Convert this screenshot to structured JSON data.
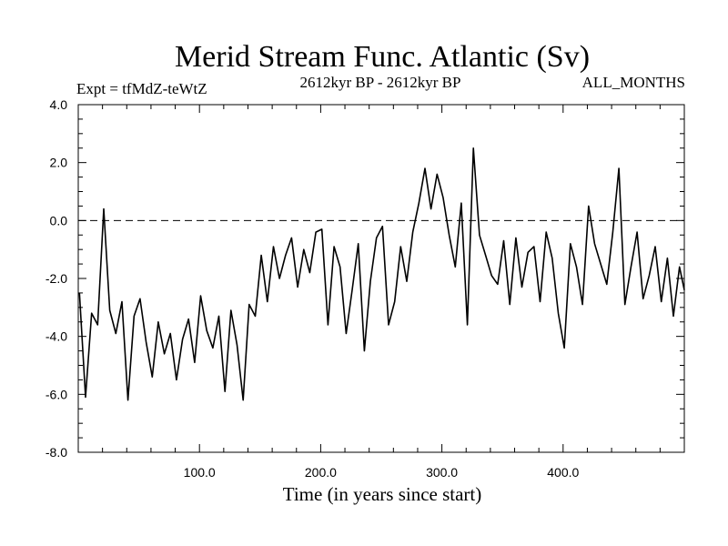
{
  "chart_data": {
    "type": "line",
    "title": "Merid Stream Func. Atlantic (Sv)",
    "left_label": "Expt = tfMdZ-teWtZ",
    "center_label": "2612kyr BP - 2612kyr BP",
    "right_label": "ALL_MONTHS",
    "xlabel": "Time (in years since start)",
    "ylabel": "",
    "xlim": [
      0,
      500
    ],
    "ylim": [
      -8.0,
      4.0
    ],
    "x_ticks": [
      100,
      200,
      300,
      400
    ],
    "x_tick_labels": [
      "100.0",
      "200.0",
      "300.0",
      "400.0"
    ],
    "y_ticks": [
      -8,
      -6,
      -4,
      -2,
      0,
      2,
      4
    ],
    "y_tick_labels": [
      "-8.0",
      "-6.0",
      "-4.0",
      "-2.0",
      "0.0",
      "2.0",
      "4.0"
    ],
    "reference_line": 0.0,
    "series": [
      {
        "name": "Merid Stream Func. Atlantic",
        "x": [
          1,
          6,
          11,
          16,
          21,
          26,
          31,
          36,
          41,
          46,
          51,
          56,
          61,
          66,
          71,
          76,
          81,
          86,
          91,
          96,
          101,
          106,
          111,
          116,
          121,
          126,
          131,
          136,
          141,
          146,
          151,
          156,
          161,
          166,
          171,
          176,
          181,
          186,
          191,
          196,
          201,
          206,
          211,
          216,
          221,
          226,
          231,
          236,
          241,
          246,
          251,
          256,
          261,
          266,
          271,
          276,
          281,
          286,
          291,
          296,
          301,
          306,
          311,
          316,
          321,
          326,
          331,
          336,
          341,
          346,
          351,
          356,
          361,
          366,
          371,
          376,
          381,
          386,
          391,
          396,
          401,
          406,
          411,
          416,
          421,
          426,
          431,
          436,
          441,
          446,
          451,
          456,
          461,
          466,
          471,
          476,
          481,
          486,
          491,
          496,
          500
        ],
        "values": [
          -2.5,
          -6.1,
          -3.2,
          -3.6,
          0.4,
          -3.1,
          -3.9,
          -2.8,
          -6.2,
          -3.3,
          -2.7,
          -4.2,
          -5.4,
          -3.5,
          -4.6,
          -3.9,
          -5.5,
          -4.1,
          -3.4,
          -4.9,
          -2.6,
          -3.8,
          -4.4,
          -3.3,
          -5.9,
          -3.1,
          -4.3,
          -6.2,
          -2.9,
          -3.3,
          -1.2,
          -2.8,
          -0.9,
          -2.0,
          -1.2,
          -0.6,
          -2.3,
          -1.0,
          -1.8,
          -0.4,
          -0.3,
          -3.6,
          -0.9,
          -1.6,
          -3.9,
          -2.4,
          -0.8,
          -4.5,
          -2.1,
          -0.6,
          -0.2,
          -3.6,
          -2.8,
          -0.9,
          -2.1,
          -0.4,
          0.6,
          1.8,
          0.4,
          1.6,
          0.8,
          -0.5,
          -1.6,
          0.6,
          -3.6,
          2.5,
          -0.5,
          -1.2,
          -1.9,
          -2.2,
          -0.7,
          -2.9,
          -0.6,
          -2.3,
          -1.1,
          -0.9,
          -2.8,
          -0.4,
          -1.3,
          -3.2,
          -4.4,
          -0.8,
          -1.6,
          -2.9,
          0.5,
          -0.8,
          -1.5,
          -2.2,
          -0.4,
          1.8,
          -2.9,
          -1.6,
          -0.4,
          -2.7,
          -1.9,
          -0.9,
          -2.8,
          -1.3,
          -3.3,
          -1.6,
          -2.4
        ]
      }
    ]
  }
}
